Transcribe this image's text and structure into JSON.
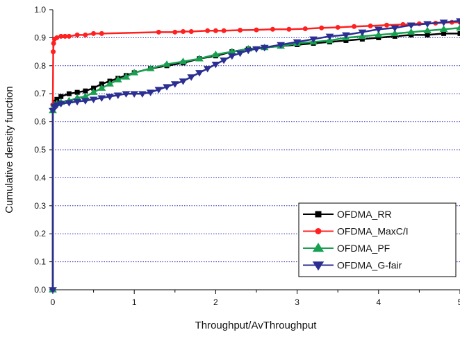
{
  "chart_data": {
    "type": "line",
    "title": "",
    "xlabel": "Throughput/AvThroughput",
    "ylabel": "Cumulative density function",
    "xlim": [
      0,
      5
    ],
    "ylim": [
      0,
      1.0
    ],
    "x_ticks": [
      "0",
      "1",
      "2",
      "3",
      "4",
      "5"
    ],
    "y_ticks": [
      "0.0",
      "0.1",
      "0.2",
      "0.3",
      "0.4",
      "0.5",
      "0.6",
      "0.7",
      "0.8",
      "0.9",
      "1.0"
    ],
    "grid": "horizontal dotted",
    "legend_position": "bottom-right",
    "series": [
      {
        "name": "OFDMA_RR",
        "color": "#000000",
        "marker": "square",
        "x": [
          0,
          0,
          0.02,
          0.05,
          0.1,
          0.2,
          0.3,
          0.4,
          0.5,
          0.6,
          0.7,
          0.8,
          0.9,
          1.0,
          1.2,
          1.4,
          1.6,
          1.8,
          2.0,
          2.2,
          2.4,
          2.6,
          2.8,
          3.0,
          3.2,
          3.4,
          3.6,
          3.8,
          4.0,
          4.2,
          4.4,
          4.6,
          4.8,
          5.0
        ],
        "y": [
          0,
          0.64,
          0.67,
          0.68,
          0.69,
          0.7,
          0.705,
          0.71,
          0.72,
          0.735,
          0.745,
          0.755,
          0.765,
          0.775,
          0.79,
          0.8,
          0.81,
          0.825,
          0.835,
          0.85,
          0.86,
          0.865,
          0.87,
          0.875,
          0.88,
          0.885,
          0.89,
          0.895,
          0.9,
          0.905,
          0.91,
          0.91,
          0.915,
          0.915
        ]
      },
      {
        "name": "OFDMA_MaxC/I",
        "color": "#ff2020",
        "marker": "circle",
        "x": [
          0,
          0,
          0.005,
          0.01,
          0.02,
          0.05,
          0.1,
          0.15,
          0.2,
          0.3,
          0.4,
          0.5,
          0.6,
          1.3,
          1.5,
          1.6,
          1.7,
          1.9,
          2.0,
          2.1,
          2.3,
          2.5,
          2.7,
          2.9,
          3.1,
          3.3,
          3.5,
          3.7,
          3.9,
          4.1,
          4.3,
          4.5,
          4.7,
          4.9,
          5.0
        ],
        "y": [
          0,
          0.66,
          0.85,
          0.88,
          0.895,
          0.9,
          0.905,
          0.905,
          0.905,
          0.91,
          0.91,
          0.915,
          0.915,
          0.92,
          0.92,
          0.922,
          0.922,
          0.925,
          0.925,
          0.925,
          0.927,
          0.928,
          0.93,
          0.93,
          0.932,
          0.935,
          0.937,
          0.94,
          0.942,
          0.945,
          0.947,
          0.95,
          0.952,
          0.955,
          0.955
        ]
      },
      {
        "name": "OFDMA_PF",
        "color": "#18a050",
        "marker": "triangle-up",
        "x": [
          0,
          0,
          0.02,
          0.05,
          0.1,
          0.2,
          0.3,
          0.4,
          0.5,
          0.6,
          0.7,
          0.8,
          0.9,
          1.0,
          1.2,
          1.4,
          1.6,
          1.8,
          2.0,
          2.2,
          2.4,
          2.6,
          2.8,
          3.0,
          3.2,
          3.4,
          3.6,
          3.8,
          4.0,
          4.2,
          4.4,
          4.6,
          4.8,
          5.0
        ],
        "y": [
          0,
          0.64,
          0.66,
          0.665,
          0.67,
          0.675,
          0.685,
          0.69,
          0.705,
          0.72,
          0.735,
          0.75,
          0.76,
          0.775,
          0.79,
          0.805,
          0.815,
          0.825,
          0.84,
          0.85,
          0.86,
          0.865,
          0.87,
          0.88,
          0.885,
          0.89,
          0.9,
          0.905,
          0.91,
          0.915,
          0.92,
          0.925,
          0.93,
          0.935
        ]
      },
      {
        "name": "OFDMA_G-fair",
        "color": "#2b2f92",
        "marker": "triangle-down",
        "x": [
          0,
          0,
          0.02,
          0.05,
          0.1,
          0.2,
          0.3,
          0.4,
          0.5,
          0.6,
          0.7,
          0.8,
          0.9,
          1.0,
          1.1,
          1.2,
          1.3,
          1.4,
          1.5,
          1.6,
          1.7,
          1.8,
          1.9,
          2.0,
          2.1,
          2.2,
          2.3,
          2.4,
          2.5,
          2.6,
          2.8,
          3.0,
          3.2,
          3.4,
          3.6,
          3.8,
          4.0,
          4.2,
          4.4,
          4.6,
          4.8,
          5.0
        ],
        "y": [
          0,
          0.64,
          0.655,
          0.66,
          0.665,
          0.668,
          0.672,
          0.675,
          0.68,
          0.685,
          0.69,
          0.695,
          0.7,
          0.7,
          0.7,
          0.705,
          0.715,
          0.725,
          0.735,
          0.745,
          0.76,
          0.775,
          0.79,
          0.805,
          0.82,
          0.835,
          0.845,
          0.855,
          0.86,
          0.865,
          0.875,
          0.885,
          0.895,
          0.905,
          0.91,
          0.92,
          0.93,
          0.935,
          0.945,
          0.95,
          0.955,
          0.96
        ]
      }
    ]
  }
}
